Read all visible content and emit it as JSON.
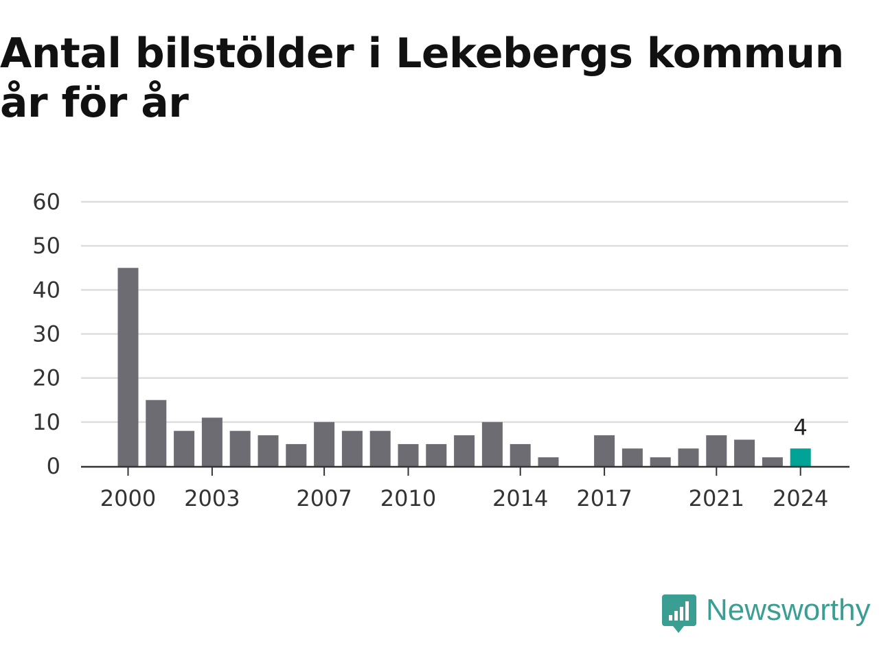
{
  "title": "Antal bilstölder i Lekebergs kommun år för år",
  "brand": {
    "name": "Newsworthy",
    "color": "#3a9e92",
    "icon": "newsworthy-logo-icon"
  },
  "colors": {
    "bar": "#6d6c72",
    "highlight": "#00a395",
    "grid": "#dddddd",
    "axis": "#333333",
    "tick_text": "#333333"
  },
  "chart_data": {
    "type": "bar",
    "title": "Antal bilstölder i Lekebergs kommun år för år",
    "xlabel": "",
    "ylabel": "",
    "categories": [
      2000,
      2001,
      2002,
      2003,
      2004,
      2005,
      2006,
      2007,
      2008,
      2009,
      2010,
      2011,
      2012,
      2013,
      2014,
      2015,
      2016,
      2017,
      2018,
      2019,
      2020,
      2021,
      2022,
      2023,
      2024
    ],
    "values": [
      45,
      15,
      8,
      11,
      8,
      7,
      5,
      10,
      8,
      8,
      5,
      5,
      7,
      10,
      5,
      2,
      0,
      7,
      4,
      2,
      4,
      7,
      6,
      2,
      4
    ],
    "x_tick_labels": [
      "2000",
      "2003",
      "2007",
      "2010",
      "2014",
      "2017",
      "2021",
      "2024"
    ],
    "y_ticks": [
      0,
      10,
      20,
      30,
      40,
      50,
      60
    ],
    "ylim": [
      0,
      60
    ],
    "grid": true,
    "legend": "none",
    "highlight": {
      "category": 2024,
      "value": 4,
      "label": "4"
    }
  }
}
